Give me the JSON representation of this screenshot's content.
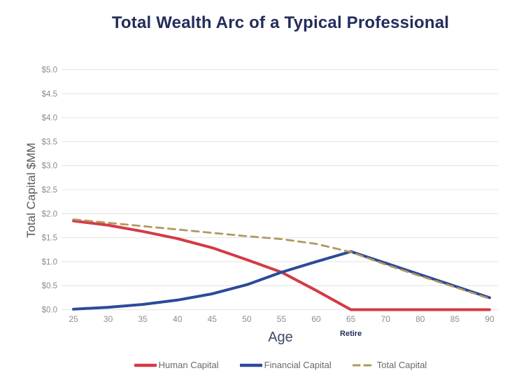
{
  "chart_data": {
    "type": "line",
    "title": "Total Wealth Arc of a Typical Professional",
    "xlabel": "Age",
    "ylabel": "Total Capital $MM",
    "ylim": [
      0.0,
      5.0
    ],
    "grid": "horizontal-only",
    "legend_position": "bottom-center",
    "annotation": {
      "label": "Retire",
      "category": "65"
    },
    "categories": [
      "25",
      "30",
      "35",
      "40",
      "45",
      "50",
      "55",
      "60",
      "65",
      "70",
      "80",
      "85",
      "90"
    ],
    "y_ticks": [
      {
        "label": "$0.0",
        "value": 0.0
      },
      {
        "label": "$0.5",
        "value": 0.5
      },
      {
        "label": "$1.0",
        "value": 1.0
      },
      {
        "label": "$1.5",
        "value": 1.5
      },
      {
        "label": "$2.0",
        "value": 2.0
      },
      {
        "label": "$2.5",
        "value": 2.5
      },
      {
        "label": "$3.0",
        "value": 3.0
      },
      {
        "label": "$3.5",
        "value": 3.5
      },
      {
        "label": "$4.0",
        "value": 4.0
      },
      {
        "label": "$4.5",
        "value": 4.5
      },
      {
        "label": "$5.0",
        "value": 5.0
      }
    ],
    "series": [
      {
        "name": "Human Capital",
        "color": "#d43a46",
        "style": "solid",
        "values": [
          1.85,
          1.76,
          1.63,
          1.48,
          1.29,
          1.04,
          0.78,
          0.4,
          0.0,
          0.0,
          0.0,
          0.0,
          0.0
        ]
      },
      {
        "name": "Financial Capital",
        "color": "#2c4a99",
        "style": "solid",
        "values": [
          0.01,
          0.05,
          0.11,
          0.2,
          0.33,
          0.52,
          0.78,
          1.0,
          1.21,
          0.97,
          0.73,
          0.49,
          0.25
        ]
      },
      {
        "name": "Total Capital",
        "color": "#b1985c",
        "style": "dashed",
        "values": [
          1.88,
          1.81,
          1.74,
          1.67,
          1.6,
          1.53,
          1.47,
          1.37,
          1.2,
          0.94,
          0.7,
          0.47,
          0.23
        ]
      }
    ],
    "colors": {
      "title": "#232d5b",
      "axis_tick_text": "#8c8c8c",
      "axis_title_text": "#595959",
      "gridline": "#e9e9e9",
      "legend_text": "#696969",
      "background": "#ffffff"
    }
  }
}
